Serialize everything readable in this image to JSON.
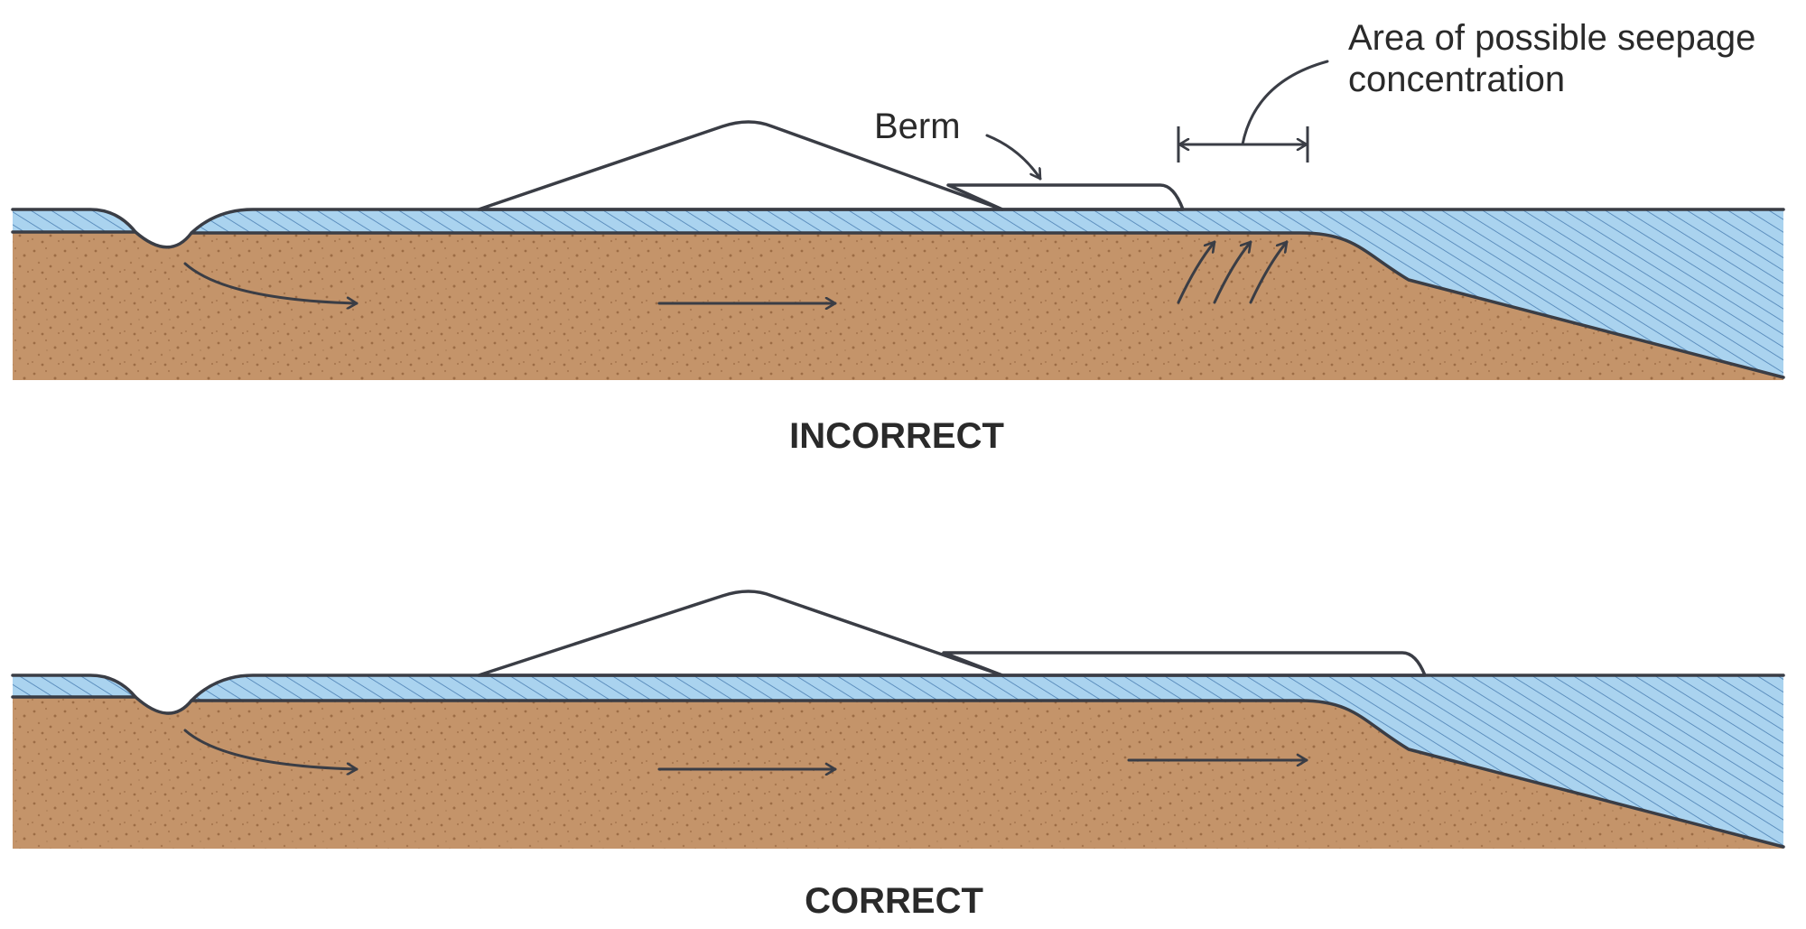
{
  "panels": {
    "incorrect": {
      "caption": "INCORRECT"
    },
    "correct": {
      "caption": "CORRECT"
    }
  },
  "annotations": {
    "berm_label": "Berm",
    "seepage_label_line1": "Area of possible seepage",
    "seepage_label_line2": "concentration"
  },
  "colors": {
    "soil": "#c4946a",
    "water": "#aad3ef",
    "berm_fill": "#4d9fdc",
    "outline": "#3a3d45",
    "hatch": "#4b7fb3"
  }
}
